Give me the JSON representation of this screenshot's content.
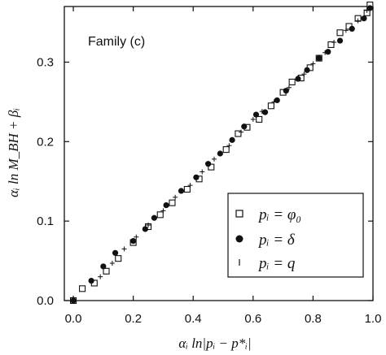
{
  "chart_data": {
    "type": "scatter",
    "annotation": "Family (c)",
    "xlabel": "αᵢ ln|pᵢ − p*ᵢ|",
    "ylabel": "αᵢ ln M_BH + βᵢ",
    "xlim": [
      -0.03,
      1.0
    ],
    "ylim": [
      0.0,
      0.37
    ],
    "xticks": [
      "0.0",
      "0.2",
      "0.4",
      "0.6",
      "0.8",
      "1.0"
    ],
    "xtick_values": [
      0.0,
      0.2,
      0.4,
      0.6,
      0.8,
      1.0
    ],
    "yticks": [
      "0.0",
      "0.1",
      "0.2",
      "0.3"
    ],
    "ytick_values": [
      0.0,
      0.1,
      0.2,
      0.3
    ],
    "legend_position": "bottom-right",
    "grid": false,
    "series": [
      {
        "name": "pᵢ = φ₀",
        "marker": "open-square",
        "points": [
          [
            0.0,
            0.0
          ],
          [
            0.03,
            0.015
          ],
          [
            0.07,
            0.022
          ],
          [
            0.11,
            0.037
          ],
          [
            0.15,
            0.053
          ],
          [
            0.2,
            0.073
          ],
          [
            0.25,
            0.093
          ],
          [
            0.29,
            0.108
          ],
          [
            0.33,
            0.123
          ],
          [
            0.38,
            0.14
          ],
          [
            0.42,
            0.153
          ],
          [
            0.46,
            0.168
          ],
          [
            0.51,
            0.19
          ],
          [
            0.55,
            0.21
          ],
          [
            0.58,
            0.218
          ],
          [
            0.62,
            0.228
          ],
          [
            0.66,
            0.245
          ],
          [
            0.7,
            0.262
          ],
          [
            0.73,
            0.275
          ],
          [
            0.76,
            0.28
          ],
          [
            0.79,
            0.293
          ],
          [
            0.82,
            0.305
          ],
          [
            0.86,
            0.322
          ],
          [
            0.89,
            0.337
          ],
          [
            0.92,
            0.345
          ],
          [
            0.95,
            0.355
          ],
          [
            0.98,
            0.362
          ],
          [
            0.99,
            0.372
          ]
        ]
      },
      {
        "name": "pᵢ = δ",
        "marker": "filled-circle",
        "points": [
          [
            0.0,
            0.0
          ],
          [
            0.06,
            0.025
          ],
          [
            0.1,
            0.043
          ],
          [
            0.14,
            0.06
          ],
          [
            0.2,
            0.075
          ],
          [
            0.24,
            0.09
          ],
          [
            0.27,
            0.104
          ],
          [
            0.31,
            0.12
          ],
          [
            0.36,
            0.138
          ],
          [
            0.41,
            0.155
          ],
          [
            0.45,
            0.172
          ],
          [
            0.49,
            0.185
          ],
          [
            0.53,
            0.202
          ],
          [
            0.57,
            0.219
          ],
          [
            0.61,
            0.234
          ],
          [
            0.64,
            0.237
          ],
          [
            0.68,
            0.252
          ],
          [
            0.71,
            0.264
          ],
          [
            0.75,
            0.279
          ],
          [
            0.78,
            0.29
          ],
          [
            0.82,
            0.305
          ],
          [
            0.85,
            0.313
          ],
          [
            0.89,
            0.327
          ],
          [
            0.93,
            0.342
          ],
          [
            0.97,
            0.355
          ],
          [
            0.99,
            0.368
          ]
        ]
      },
      {
        "name": "pᵢ = q",
        "marker": "plus",
        "points": [
          [
            0.0,
            0.0
          ],
          [
            0.09,
            0.03
          ],
          [
            0.13,
            0.047
          ],
          [
            0.17,
            0.065
          ],
          [
            0.21,
            0.08
          ],
          [
            0.25,
            0.095
          ],
          [
            0.3,
            0.113
          ],
          [
            0.34,
            0.13
          ],
          [
            0.39,
            0.145
          ],
          [
            0.43,
            0.162
          ],
          [
            0.47,
            0.178
          ],
          [
            0.52,
            0.195
          ],
          [
            0.56,
            0.212
          ],
          [
            0.6,
            0.228
          ],
          [
            0.63,
            0.238
          ],
          [
            0.67,
            0.25
          ],
          [
            0.72,
            0.268
          ],
          [
            0.77,
            0.285
          ],
          [
            0.8,
            0.298
          ],
          [
            0.84,
            0.312
          ],
          [
            0.87,
            0.325
          ],
          [
            0.91,
            0.34
          ],
          [
            0.95,
            0.352
          ],
          [
            0.98,
            0.365
          ]
        ]
      }
    ]
  }
}
